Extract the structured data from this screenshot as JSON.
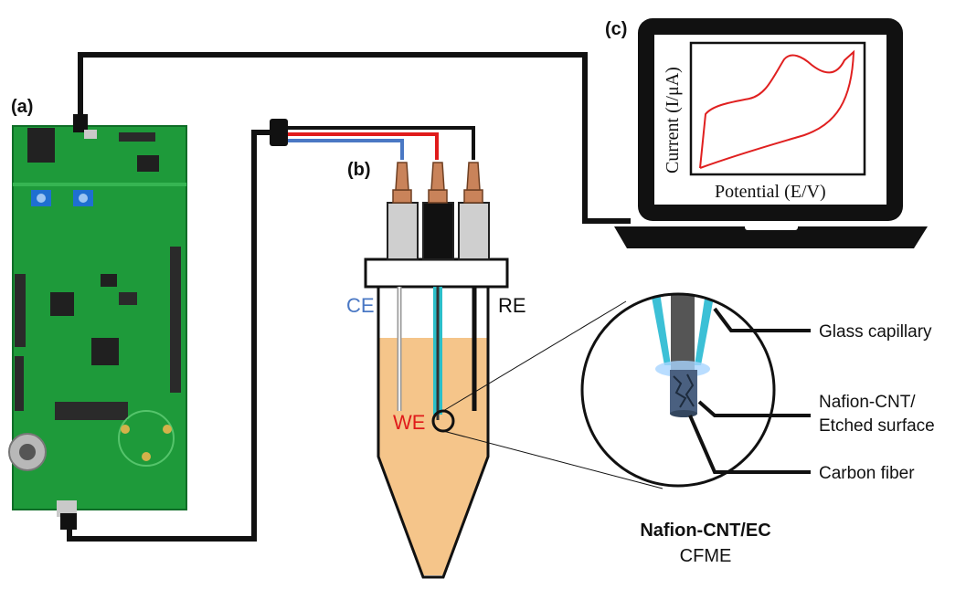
{
  "panels": {
    "a": "(a)",
    "b": "(b)",
    "c": "(c)"
  },
  "electrodes": {
    "ce": "CE",
    "re": "RE",
    "we": "WE"
  },
  "plot": {
    "ylabel": "Current (I/μA)",
    "xlabel": "Potential (E/V)"
  },
  "callouts": {
    "glass": "Glass capillary",
    "nafion_line1": "Nafion-CNT/",
    "nafion_line2": "Etched surface",
    "fiber": "Carbon fiber"
  },
  "caption": {
    "line1": "Nafion-CNT/EC",
    "line2": "CFME"
  },
  "colors": {
    "ce": "#4a78c4",
    "we": "#e01b1b",
    "re": "#111111",
    "solution": "#f5c58a",
    "board": "#1e9a3a",
    "curve": "#e02020",
    "wire_blue": "#4a78c4",
    "wire_red": "#e01b1b",
    "capillary": "#2bbfc9"
  }
}
